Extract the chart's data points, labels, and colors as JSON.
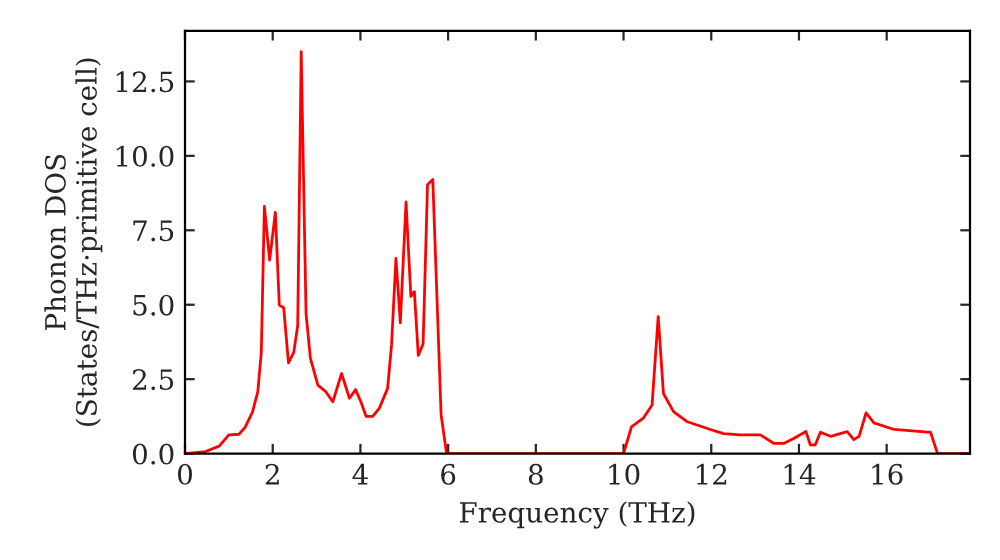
{
  "chart_data": {
    "type": "line",
    "xlabel": "Frequency (THz)",
    "ylabel": "Phonon DOS\n(States/THz·primitive cell)",
    "x": [
      0.0,
      0.47,
      0.78,
      1.0,
      1.23,
      1.37,
      1.54,
      1.66,
      1.74,
      1.81,
      1.93,
      2.06,
      2.15,
      2.25,
      2.36,
      2.48,
      2.57,
      2.65,
      2.76,
      2.86,
      3.03,
      3.21,
      3.37,
      3.57,
      3.75,
      3.89,
      4.01,
      4.13,
      4.28,
      4.43,
      4.62,
      4.71,
      4.81,
      4.91,
      5.04,
      5.15,
      5.23,
      5.32,
      5.43,
      5.53,
      5.65,
      5.84,
      5.96,
      6.0,
      10.0,
      10.18,
      10.45,
      10.65,
      10.79,
      10.91,
      11.14,
      11.44,
      11.98,
      12.28,
      12.66,
      13.12,
      13.43,
      13.65,
      13.88,
      14.16,
      14.26,
      14.37,
      14.49,
      14.72,
      15.1,
      15.25,
      15.37,
      15.53,
      15.71,
      16.17,
      16.93,
      17.0,
      17.16,
      17.9
    ],
    "series": [
      {
        "color": "#ff0000",
        "values": [
          0,
          0.07,
          0.25,
          0.63,
          0.65,
          0.88,
          1.4,
          2.08,
          3.4,
          8.3,
          6.5,
          8.1,
          4.99,
          4.9,
          3.05,
          3.4,
          4.3,
          13.5,
          4.7,
          3.2,
          2.3,
          2.08,
          1.74,
          2.69,
          1.86,
          2.15,
          1.74,
          1.25,
          1.25,
          1.52,
          2.19,
          3.65,
          6.56,
          4.39,
          8.45,
          5.28,
          5.44,
          3.3,
          3.69,
          9.03,
          9.21,
          1.3,
          0.05,
          0,
          0,
          0.9,
          1.19,
          1.63,
          4.6,
          2.02,
          1.41,
          1.08,
          0.81,
          0.67,
          0.63,
          0.63,
          0.34,
          0.34,
          0.51,
          0.74,
          0.29,
          0.29,
          0.72,
          0.58,
          0.74,
          0.47,
          0.58,
          1.37,
          1.03,
          0.81,
          0.72,
          0.72,
          0,
          0
        ]
      }
    ],
    "xlim": [
      0,
      17.9
    ],
    "ylim": [
      0,
      14.2
    ],
    "xticks": [
      0,
      2,
      4,
      6,
      8,
      10,
      12,
      14,
      16
    ],
    "yticks": [
      {
        "value": 0,
        "label": "0.0"
      },
      2.5,
      {
        "value": 5,
        "label": "5.0"
      },
      7.5,
      {
        "value": 10,
        "label": "10.0"
      },
      12.5
    ],
    "grid": false,
    "marker": "none",
    "line_style": "solid"
  }
}
